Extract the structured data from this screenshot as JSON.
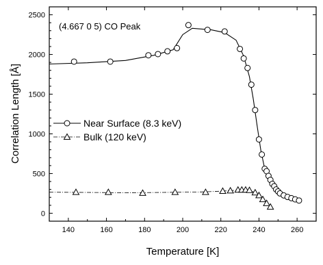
{
  "chart_data": {
    "type": "scatter",
    "annotation": "(4.667 0 5) CO Peak",
    "xlabel": "Temperature [K]",
    "ylabel": "Correlation Length [Å]",
    "xlim": [
      130,
      270
    ],
    "ylim": [
      -100,
      2600
    ],
    "xticks": [
      140,
      160,
      180,
      200,
      220,
      240,
      260
    ],
    "yticks": [
      0,
      500,
      1000,
      1500,
      2000,
      2500
    ],
    "grid": false,
    "legend_position": "left-middle",
    "series": [
      {
        "name": "Near Surface (8.3 keV)",
        "marker": "circle",
        "line_style": "solid",
        "points": [
          [
            143,
            1910
          ],
          [
            162,
            1910
          ],
          [
            182,
            1990
          ],
          [
            187,
            2005
          ],
          [
            192,
            2040
          ],
          [
            197,
            2080
          ],
          [
            203,
            2370
          ],
          [
            213,
            2310
          ],
          [
            222,
            2290
          ],
          [
            230,
            2070
          ],
          [
            232,
            1950
          ],
          [
            234,
            1830
          ],
          [
            236,
            1620
          ],
          [
            238,
            1300
          ],
          [
            240,
            930
          ],
          [
            241.5,
            740
          ],
          [
            243,
            560
          ],
          [
            244,
            530
          ],
          [
            245,
            470
          ],
          [
            246,
            420
          ],
          [
            247,
            370
          ],
          [
            248,
            340
          ],
          [
            249,
            300
          ],
          [
            250,
            275
          ],
          [
            251,
            250
          ],
          [
            253,
            225
          ],
          [
            255,
            205
          ],
          [
            257,
            190
          ],
          [
            259,
            175
          ],
          [
            261,
            160
          ]
        ],
        "fit_curve": [
          [
            130,
            1880
          ],
          [
            150,
            1895
          ],
          [
            170,
            1925
          ],
          [
            185,
            1990
          ],
          [
            195,
            2060
          ],
          [
            200,
            2250
          ],
          [
            205,
            2330
          ],
          [
            215,
            2310
          ],
          [
            222,
            2275
          ],
          [
            228,
            2180
          ],
          [
            232,
            1980
          ],
          [
            235,
            1720
          ],
          [
            237,
            1440
          ],
          [
            239,
            1110
          ],
          [
            241,
            790
          ],
          [
            243,
            560
          ],
          [
            245,
            430
          ],
          [
            248,
            330
          ],
          [
            252,
            250
          ],
          [
            256,
            205
          ],
          [
            262,
            160
          ]
        ]
      },
      {
        "name": "Bulk (120 keV)",
        "marker": "triangle",
        "line_style": "dash-dot",
        "points": [
          [
            144,
            265
          ],
          [
            161,
            265
          ],
          [
            179,
            255
          ],
          [
            196,
            265
          ],
          [
            212,
            265
          ],
          [
            221,
            280
          ],
          [
            225,
            285
          ],
          [
            229,
            295
          ],
          [
            231,
            295
          ],
          [
            233,
            295
          ],
          [
            235,
            290
          ],
          [
            238,
            260
          ],
          [
            240,
            225
          ],
          [
            242,
            175
          ],
          [
            244,
            125
          ],
          [
            246,
            80
          ]
        ],
        "fit_curve": [
          [
            130,
            265
          ],
          [
            150,
            262
          ],
          [
            170,
            258
          ],
          [
            190,
            262
          ],
          [
            210,
            268
          ],
          [
            220,
            278
          ],
          [
            228,
            290
          ],
          [
            234,
            292
          ],
          [
            237,
            270
          ],
          [
            240,
            225
          ],
          [
            243,
            150
          ],
          [
            246,
            80
          ]
        ]
      }
    ]
  }
}
